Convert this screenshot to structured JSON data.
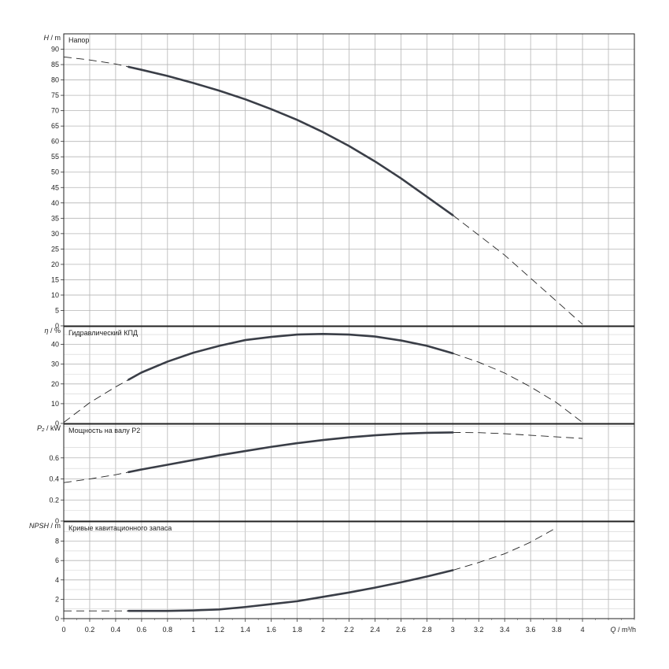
{
  "chart_data": {
    "type": "line",
    "x_axis": {
      "label_name": "Q",
      "label_unit": "m³/h",
      "range": [
        0,
        4.4
      ],
      "ticks": [
        "0",
        "0.2",
        "0.4",
        "0.6",
        "0.8",
        "1",
        "1.2",
        "1.4",
        "1.6",
        "1.8",
        "2",
        "2.2",
        "2.4",
        "2.6",
        "2.8",
        "3",
        "3.2",
        "3.4",
        "3.6",
        "3.8",
        "4"
      ]
    },
    "grid": true,
    "panels": [
      {
        "key": "head",
        "title": "Напор",
        "ylabel_name": "H",
        "ylabel_unit": "m",
        "ylim": [
          0,
          95
        ],
        "yticks": [
          "0",
          "5",
          "10",
          "15",
          "20",
          "25",
          "30",
          "35",
          "40",
          "45",
          "50",
          "55",
          "60",
          "65",
          "70",
          "75",
          "80",
          "85",
          "90"
        ],
        "solid_range": [
          0.5,
          3.0
        ],
        "x": [
          0,
          0.2,
          0.4,
          0.6,
          0.8,
          1.0,
          1.2,
          1.4,
          1.6,
          1.8,
          2.0,
          2.2,
          2.4,
          2.6,
          2.8,
          3.0,
          3.2,
          3.4,
          3.6,
          3.8,
          4.0
        ],
        "values": [
          87.5,
          86.5,
          85.2,
          83.3,
          81.3,
          79.0,
          76.5,
          73.7,
          70.5,
          67.0,
          63.0,
          58.5,
          53.5,
          48.0,
          42.0,
          36.0,
          29.5,
          23.0,
          15.5,
          8.0,
          0.5
        ]
      },
      {
        "key": "efficiency",
        "title": "Гидравлический КПД",
        "ylabel_name": "η",
        "ylabel_unit": "%",
        "ylim": [
          0,
          49
        ],
        "yticks": [
          "0",
          "10",
          "20",
          "30",
          "40"
        ],
        "solid_range": [
          0.5,
          3.0
        ],
        "x": [
          0,
          0.2,
          0.4,
          0.6,
          0.8,
          1.0,
          1.2,
          1.4,
          1.6,
          1.8,
          2.0,
          2.2,
          2.4,
          2.6,
          2.8,
          3.0,
          3.2,
          3.4,
          3.6,
          3.8,
          4.0
        ],
        "values": [
          0.5,
          10.5,
          18.5,
          25.8,
          31.3,
          35.8,
          39.3,
          42.2,
          43.8,
          45.0,
          45.3,
          45.0,
          44.0,
          42.0,
          39.3,
          35.5,
          31.0,
          25.5,
          18.5,
          10.5,
          0.5
        ]
      },
      {
        "key": "power",
        "title": "Мощность на валу P2",
        "ylabel_name": "P₂",
        "ylabel_unit": "kW",
        "ylim": [
          0,
          0.92
        ],
        "yticks": [
          "0",
          "0.2",
          "0.4",
          "0.6"
        ],
        "solid_range": [
          0.5,
          3.0
        ],
        "x": [
          0,
          0.2,
          0.4,
          0.6,
          0.8,
          1.0,
          1.2,
          1.4,
          1.6,
          1.8,
          2.0,
          2.2,
          2.4,
          2.6,
          2.8,
          3.0,
          3.2,
          3.4,
          3.6,
          3.8,
          4.0
        ],
        "values": [
          0.365,
          0.4,
          0.44,
          0.49,
          0.535,
          0.58,
          0.625,
          0.665,
          0.705,
          0.74,
          0.77,
          0.795,
          0.815,
          0.83,
          0.838,
          0.842,
          0.84,
          0.83,
          0.815,
          0.8,
          0.785
        ]
      },
      {
        "key": "npsh",
        "title": "Кривые кавитационного запаса",
        "ylabel_name": "NPSH",
        "ylabel_unit": "m",
        "ylim": [
          0,
          10
        ],
        "yticks": [
          "0",
          "2",
          "4",
          "6",
          "8"
        ],
        "solid_range": [
          0.5,
          3.0
        ],
        "x": [
          0,
          0.2,
          0.4,
          0.6,
          0.8,
          1.0,
          1.2,
          1.4,
          1.6,
          1.8,
          2.0,
          2.2,
          2.4,
          2.6,
          2.8,
          3.0,
          3.2,
          3.4,
          3.6,
          3.8
        ],
        "values": [
          0.8,
          0.8,
          0.8,
          0.8,
          0.8,
          0.85,
          0.95,
          1.2,
          1.5,
          1.8,
          2.25,
          2.7,
          3.2,
          3.75,
          4.35,
          5.0,
          5.8,
          6.7,
          7.9,
          9.4
        ]
      }
    ]
  }
}
